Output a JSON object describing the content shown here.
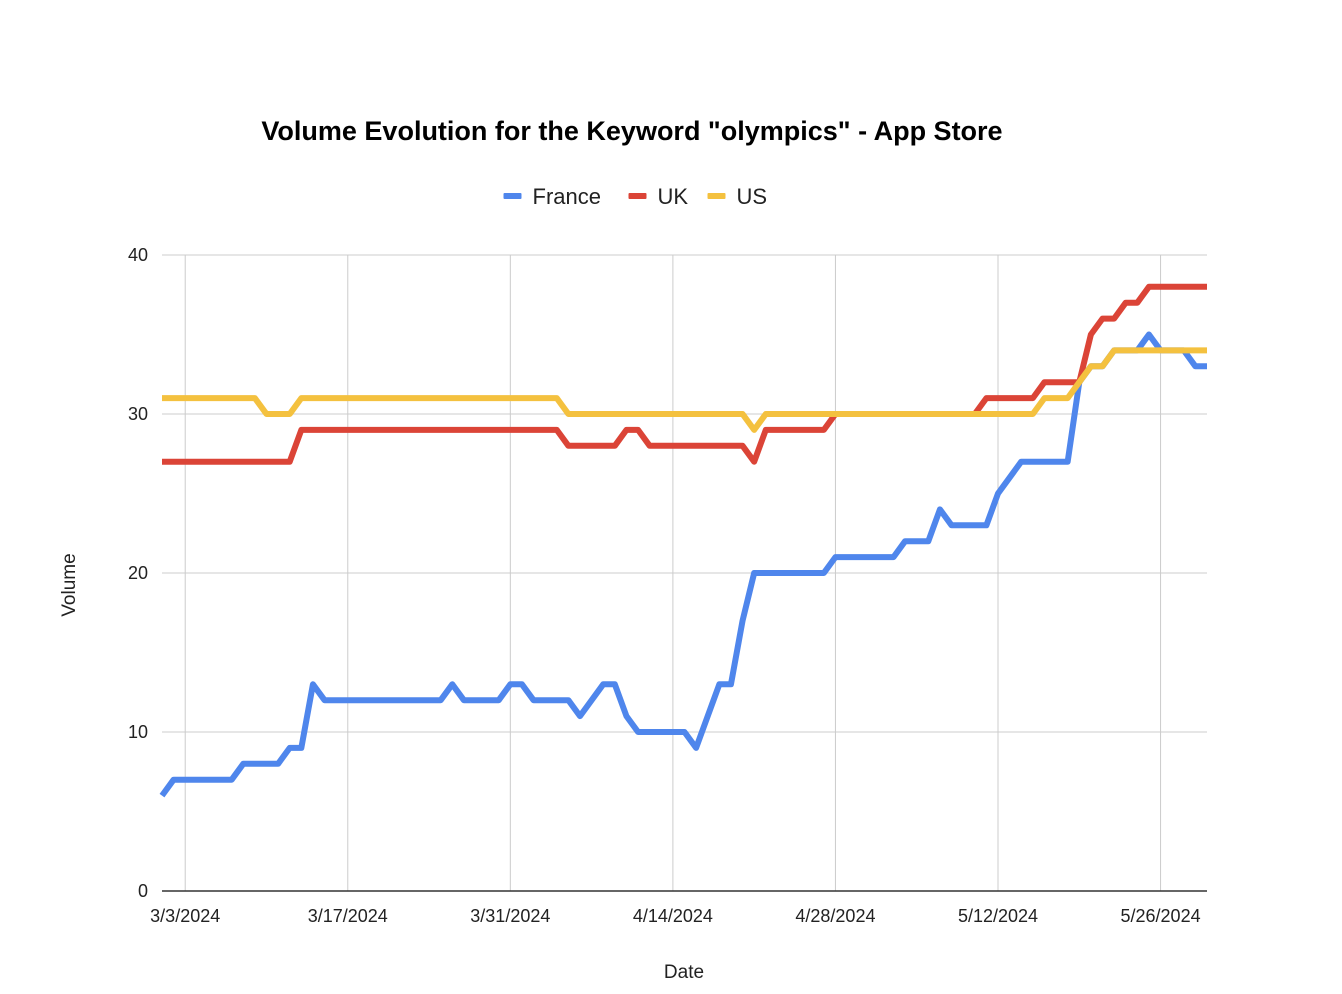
{
  "chart_data": {
    "type": "line",
    "title": "Volume Evolution for the Keyword \"olympics\" - App Store",
    "xlabel": "Date",
    "ylabel": "Volume",
    "ylim": [
      0,
      40
    ],
    "yticks": [
      0,
      10,
      20,
      30,
      40
    ],
    "x_start": "2024-03-01",
    "x_end": "2024-05-30",
    "xticks": [
      {
        "date": "2024-03-03",
        "label": "3/3/2024"
      },
      {
        "date": "2024-03-17",
        "label": "3/17/2024"
      },
      {
        "date": "2024-03-31",
        "label": "3/31/2024"
      },
      {
        "date": "2024-04-14",
        "label": "4/14/2024"
      },
      {
        "date": "2024-04-28",
        "label": "4/28/2024"
      },
      {
        "date": "2024-05-12",
        "label": "5/12/2024"
      },
      {
        "date": "2024-05-26",
        "label": "5/26/2024"
      }
    ],
    "grid": true,
    "legend_position": "top",
    "series": [
      {
        "name": "France",
        "color": "#4f86ec",
        "points": [
          [
            "2024-03-01",
            6
          ],
          [
            "2024-03-02",
            7
          ],
          [
            "2024-03-07",
            7
          ],
          [
            "2024-03-08",
            8
          ],
          [
            "2024-03-11",
            8
          ],
          [
            "2024-03-12",
            9
          ],
          [
            "2024-03-13",
            9
          ],
          [
            "2024-03-14",
            13
          ],
          [
            "2024-03-15",
            12
          ],
          [
            "2024-03-25",
            12
          ],
          [
            "2024-03-26",
            13
          ],
          [
            "2024-03-27",
            12
          ],
          [
            "2024-03-30",
            12
          ],
          [
            "2024-03-31",
            13
          ],
          [
            "2024-04-01",
            13
          ],
          [
            "2024-04-02",
            12
          ],
          [
            "2024-04-05",
            12
          ],
          [
            "2024-04-06",
            11
          ],
          [
            "2024-04-08",
            13
          ],
          [
            "2024-04-09",
            13
          ],
          [
            "2024-04-10",
            11
          ],
          [
            "2024-04-11",
            10
          ],
          [
            "2024-04-15",
            10
          ],
          [
            "2024-04-16",
            9
          ],
          [
            "2024-04-18",
            13
          ],
          [
            "2024-04-19",
            13
          ],
          [
            "2024-04-20",
            17
          ],
          [
            "2024-04-21",
            20
          ],
          [
            "2024-04-27",
            20
          ],
          [
            "2024-04-28",
            21
          ],
          [
            "2024-05-03",
            21
          ],
          [
            "2024-05-04",
            22
          ],
          [
            "2024-05-06",
            22
          ],
          [
            "2024-05-07",
            24
          ],
          [
            "2024-05-08",
            23
          ],
          [
            "2024-05-11",
            23
          ],
          [
            "2024-05-12",
            25
          ],
          [
            "2024-05-14",
            27
          ],
          [
            "2024-05-18",
            27
          ],
          [
            "2024-05-19",
            32
          ],
          [
            "2024-05-20",
            33
          ],
          [
            "2024-05-21",
            33
          ],
          [
            "2024-05-22",
            34
          ],
          [
            "2024-05-24",
            34
          ],
          [
            "2024-05-25",
            35
          ],
          [
            "2024-05-26",
            34
          ],
          [
            "2024-05-28",
            34
          ],
          [
            "2024-05-29",
            33
          ],
          [
            "2024-05-30",
            33
          ]
        ]
      },
      {
        "name": "UK",
        "color": "#db4437",
        "points": [
          [
            "2024-03-01",
            27
          ],
          [
            "2024-03-12",
            27
          ],
          [
            "2024-03-13",
            29
          ],
          [
            "2024-04-04",
            29
          ],
          [
            "2024-04-05",
            28
          ],
          [
            "2024-04-09",
            28
          ],
          [
            "2024-04-10",
            29
          ],
          [
            "2024-04-11",
            29
          ],
          [
            "2024-04-12",
            28
          ],
          [
            "2024-04-20",
            28
          ],
          [
            "2024-04-21",
            27
          ],
          [
            "2024-04-22",
            29
          ],
          [
            "2024-04-27",
            29
          ],
          [
            "2024-04-28",
            30
          ],
          [
            "2024-05-10",
            30
          ],
          [
            "2024-05-11",
            31
          ],
          [
            "2024-05-15",
            31
          ],
          [
            "2024-05-16",
            32
          ],
          [
            "2024-05-19",
            32
          ],
          [
            "2024-05-20",
            35
          ],
          [
            "2024-05-21",
            36
          ],
          [
            "2024-05-22",
            36
          ],
          [
            "2024-05-23",
            37
          ],
          [
            "2024-05-24",
            37
          ],
          [
            "2024-05-25",
            38
          ],
          [
            "2024-05-30",
            38
          ]
        ]
      },
      {
        "name": "US",
        "color": "#f4c13f",
        "points": [
          [
            "2024-03-01",
            31
          ],
          [
            "2024-03-09",
            31
          ],
          [
            "2024-03-10",
            30
          ],
          [
            "2024-03-12",
            30
          ],
          [
            "2024-03-13",
            31
          ],
          [
            "2024-04-04",
            31
          ],
          [
            "2024-04-05",
            30
          ],
          [
            "2024-04-20",
            30
          ],
          [
            "2024-04-21",
            29
          ],
          [
            "2024-04-22",
            30
          ],
          [
            "2024-05-15",
            30
          ],
          [
            "2024-05-16",
            31
          ],
          [
            "2024-05-18",
            31
          ],
          [
            "2024-05-19",
            32
          ],
          [
            "2024-05-20",
            33
          ],
          [
            "2024-05-21",
            33
          ],
          [
            "2024-05-22",
            34
          ],
          [
            "2024-05-30",
            34
          ]
        ]
      }
    ]
  }
}
